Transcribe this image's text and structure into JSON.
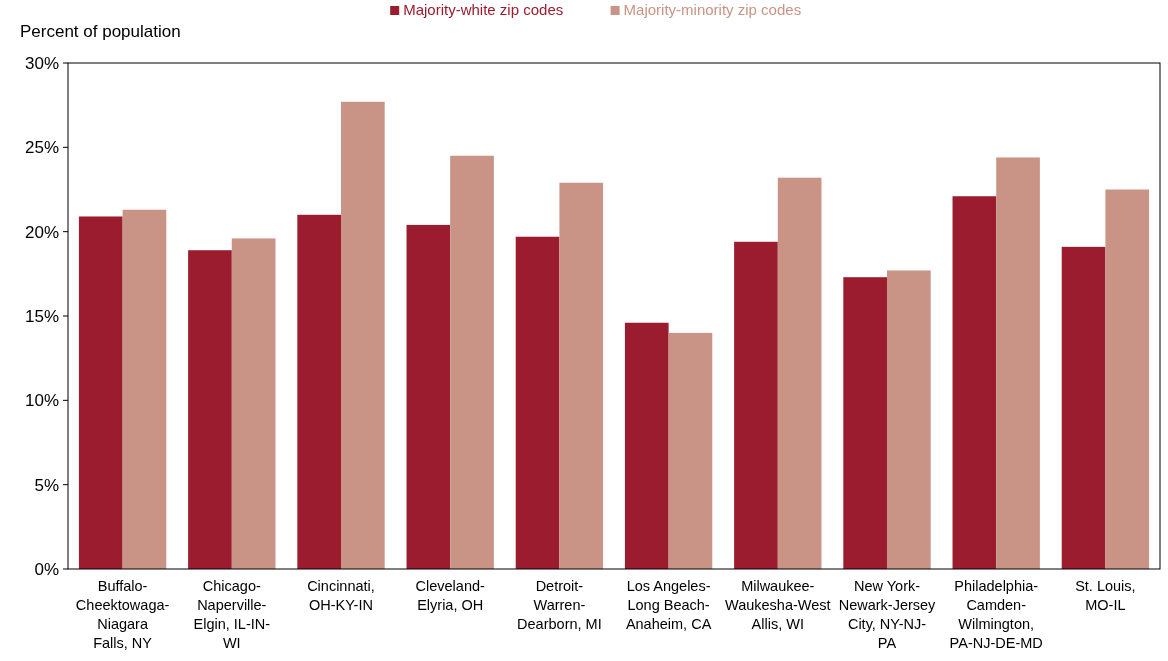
{
  "chart_data": {
    "type": "bar",
    "ylabel": "Percent of population",
    "categories": [
      "Buffalo-Cheektowaga-Niagara Falls, NY",
      "Chicago-Naperville-Elgin, IL-IN-WI",
      "Cincinnati, OH-KY-IN",
      "Cleveland-Elyria, OH",
      "Detroit-Warren-Dearborn, MI",
      "Los Angeles-Long Beach-Anaheim, CA",
      "Milwaukee-Waukesha-West Allis, WI",
      "New York-Newark-Jersey City, NY-NJ-PA",
      "Philadelphia-Camden-Wilmington, PA-NJ-DE-MD",
      "St. Louis, MO-IL"
    ],
    "series": [
      {
        "name": "Majority-white zip codes",
        "color": "#9b1c2e",
        "values": [
          20.9,
          18.9,
          21.0,
          20.4,
          19.7,
          14.6,
          19.4,
          17.3,
          22.1,
          19.1
        ]
      },
      {
        "name": "Majority-minority zip codes",
        "color": "#c99486",
        "values": [
          21.3,
          19.6,
          27.7,
          24.5,
          22.9,
          14.0,
          23.2,
          17.7,
          24.4,
          22.5
        ]
      }
    ],
    "ylim": [
      0,
      30
    ],
    "yticks": [
      {
        "value": 0,
        "label": "0%"
      },
      {
        "value": 5,
        "label": "5%"
      },
      {
        "value": 10,
        "label": "10%"
      },
      {
        "value": 15,
        "label": "15%"
      },
      {
        "value": 20,
        "label": "20%"
      },
      {
        "value": 25,
        "label": "25%"
      },
      {
        "value": 30,
        "label": "30%"
      }
    ],
    "grid": false,
    "legend": "top"
  }
}
